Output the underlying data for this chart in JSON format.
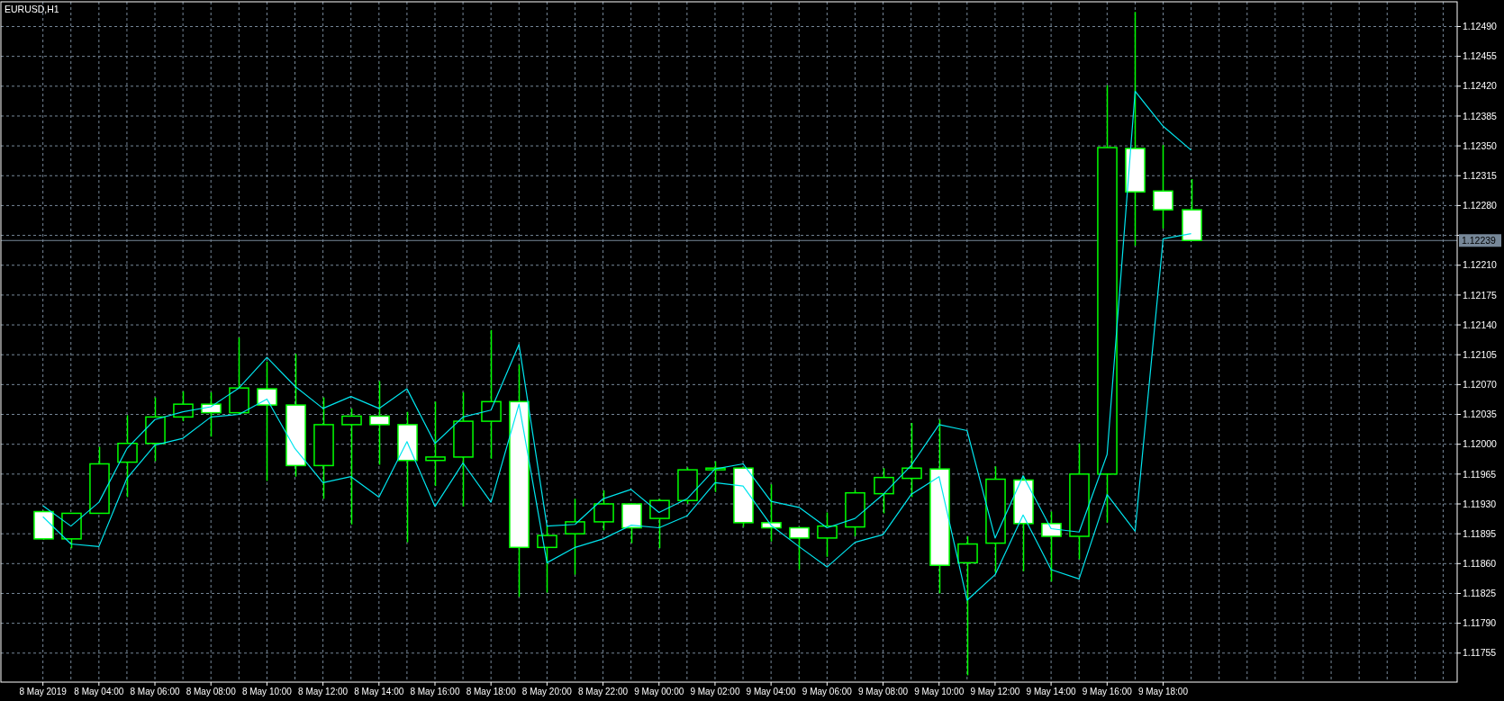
{
  "chart_data": {
    "type": "candlestick",
    "title": "EURUSD,H1",
    "x": [
      "2019-05-08T02:00",
      "2019-05-08T03:00",
      "2019-05-08T04:00",
      "2019-05-08T05:00",
      "2019-05-08T06:00",
      "2019-05-08T07:00",
      "2019-05-08T08:00",
      "2019-05-08T09:00",
      "2019-05-08T10:00",
      "2019-05-08T11:00",
      "2019-05-08T12:00",
      "2019-05-08T13:00",
      "2019-05-08T14:00",
      "2019-05-08T15:00",
      "2019-05-08T16:00",
      "2019-05-08T17:00",
      "2019-05-08T18:00",
      "2019-05-08T19:00",
      "2019-05-08T20:00",
      "2019-05-08T21:00",
      "2019-05-08T22:00",
      "2019-05-08T23:00",
      "2019-05-09T00:00",
      "2019-05-09T01:00",
      "2019-05-09T02:00",
      "2019-05-09T03:00",
      "2019-05-09T04:00",
      "2019-05-09T05:00",
      "2019-05-09T06:00",
      "2019-05-09T07:00",
      "2019-05-09T08:00",
      "2019-05-09T09:00",
      "2019-05-09T10:00",
      "2019-05-09T11:00",
      "2019-05-09T12:00",
      "2019-05-09T13:00",
      "2019-05-09T14:00",
      "2019-05-09T15:00",
      "2019-05-09T16:00",
      "2019-05-09T17:00",
      "2019-05-09T18:00",
      "2019-05-09T19:00"
    ],
    "series": [
      {
        "color": "#00ff00",
        "ohlc": [
          [
            1.11921,
            1.11922,
            1.11888,
            1.11889
          ],
          [
            1.11889,
            1.11919,
            1.11878,
            1.11919
          ],
          [
            1.11919,
            1.11997,
            1.11919,
            1.11977
          ],
          [
            1.11979,
            1.12034,
            1.11938,
            1.12001
          ],
          [
            1.12001,
            1.12055,
            1.1198,
            1.12032
          ],
          [
            1.12032,
            1.12062,
            1.12027,
            1.12047
          ],
          [
            1.12047,
            1.12061,
            1.12009,
            1.12037
          ],
          [
            1.12037,
            1.12125,
            1.12035,
            1.12066
          ],
          [
            1.12065,
            1.12097,
            1.11957,
            1.12046
          ],
          [
            1.12046,
            1.12106,
            1.11962,
            1.11975
          ],
          [
            1.11975,
            1.12055,
            1.11936,
            1.12023
          ],
          [
            1.12023,
            1.12042,
            1.11906,
            1.12033
          ],
          [
            1.12033,
            1.12074,
            1.11976,
            1.12023
          ],
          [
            1.12023,
            1.12038,
            1.11885,
            1.11981
          ],
          [
            1.11981,
            1.1205,
            1.11951,
            1.11985
          ],
          [
            1.11985,
            1.12061,
            1.11927,
            1.12027
          ],
          [
            1.12027,
            1.12134,
            1.11983,
            1.1205
          ],
          [
            1.1205,
            1.12093,
            1.11821,
            1.11879
          ],
          [
            1.11879,
            1.11904,
            1.11826,
            1.11893
          ],
          [
            1.11895,
            1.11936,
            1.11847,
            1.11909
          ],
          [
            1.11909,
            1.11946,
            1.11899,
            1.1193
          ],
          [
            1.1193,
            1.11931,
            1.11884,
            1.11902
          ],
          [
            1.11913,
            1.11936,
            1.11878,
            1.11934
          ],
          [
            1.11934,
            1.11973,
            1.1193,
            1.1197
          ],
          [
            1.1197,
            1.1198,
            1.11944,
            1.11972
          ],
          [
            1.11972,
            1.11973,
            1.11903,
            1.11908
          ],
          [
            1.11908,
            1.11953,
            1.11886,
            1.11902
          ],
          [
            1.11902,
            1.11903,
            1.11853,
            1.1189
          ],
          [
            1.1189,
            1.1192,
            1.11868,
            1.11904
          ],
          [
            1.11903,
            1.11946,
            1.11892,
            1.11943
          ],
          [
            1.11942,
            1.11972,
            1.11919,
            1.11961
          ],
          [
            1.1196,
            1.12025,
            1.11938,
            1.11972
          ],
          [
            1.11971,
            1.12029,
            1.11825,
            1.11858
          ],
          [
            1.11861,
            1.11892,
            1.11729,
            1.11883
          ],
          [
            1.11884,
            1.11974,
            1.11849,
            1.11959
          ],
          [
            1.11958,
            1.11963,
            1.11851,
            1.11907
          ],
          [
            1.11907,
            1.11921,
            1.11839,
            1.11892
          ],
          [
            1.11892,
            1.12001,
            1.11865,
            1.11965
          ],
          [
            1.11965,
            1.12421,
            1.11908,
            1.12348
          ],
          [
            1.12347,
            1.12507,
            1.12233,
            1.12296
          ],
          [
            1.12297,
            1.12351,
            1.12253,
            1.12275
          ],
          [
            1.12275,
            1.12311,
            1.12239,
            1.12239
          ]
        ]
      },
      {
        "type": "line",
        "color": "#00e5ee",
        "values": [
          1.11928,
          1.11904,
          1.11932,
          1.11995,
          1.12029,
          1.12038,
          1.12044,
          1.12066,
          1.12102,
          1.12068,
          1.12042,
          1.12056,
          1.12042,
          1.12065,
          1.12001,
          1.12032,
          1.1204,
          1.12117,
          1.11904,
          1.11906,
          1.11936,
          1.11947,
          1.1192,
          1.11936,
          1.11971,
          1.11977,
          1.11933,
          1.11926,
          1.11902,
          1.11913,
          1.11941,
          1.11975,
          1.12023,
          1.12016,
          1.1189,
          1.11963,
          1.11901,
          1.11897,
          1.11988,
          1.12414,
          1.12373,
          1.12345
        ]
      },
      {
        "type": "line",
        "color": "#00e5ee",
        "values": [
          1.11915,
          1.11883,
          1.1188,
          1.1196,
          1.11999,
          1.12007,
          1.12032,
          1.12035,
          1.12053,
          1.11995,
          1.11955,
          1.11962,
          1.11938,
          1.12003,
          1.11927,
          1.11978,
          1.11932,
          1.12047,
          1.11861,
          1.11879,
          1.11889,
          1.11905,
          1.11902,
          1.11916,
          1.11955,
          1.11951,
          1.11905,
          1.1188,
          1.11856,
          1.11885,
          1.11894,
          1.11941,
          1.11962,
          1.11817,
          1.11847,
          1.11917,
          1.11853,
          1.11842,
          1.11941,
          1.11898,
          1.12241,
          1.12247
        ]
      }
    ],
    "xlim": [
      "2019-05-08T00:30",
      "2019-05-10T04:30"
    ],
    "xticks": [
      {
        "value": "2019-05-08T02:00",
        "label": "8 May 2019"
      },
      {
        "value": "2019-05-08T03:00",
        "label": null
      },
      {
        "value": "2019-05-08T04:00",
        "label": "8 May 04:00"
      },
      {
        "value": "2019-05-08T05:00",
        "label": null
      },
      {
        "value": "2019-05-08T06:00",
        "label": "8 May 06:00"
      },
      {
        "value": "2019-05-08T07:00",
        "label": null
      },
      {
        "value": "2019-05-08T08:00",
        "label": "8 May 08:00"
      },
      {
        "value": "2019-05-08T09:00",
        "label": null
      },
      {
        "value": "2019-05-08T10:00",
        "label": "8 May 10:00"
      },
      {
        "value": "2019-05-08T11:00",
        "label": null
      },
      {
        "value": "2019-05-08T12:00",
        "label": "8 May 12:00"
      },
      {
        "value": "2019-05-08T13:00",
        "label": null
      },
      {
        "value": "2019-05-08T14:00",
        "label": "8 May 14:00"
      },
      {
        "value": "2019-05-08T15:00",
        "label": null
      },
      {
        "value": "2019-05-08T16:00",
        "label": "8 May 16:00"
      },
      {
        "value": "2019-05-08T17:00",
        "label": null
      },
      {
        "value": "2019-05-08T18:00",
        "label": "8 May 18:00"
      },
      {
        "value": "2019-05-08T19:00",
        "label": null
      },
      {
        "value": "2019-05-08T20:00",
        "label": "8 May 20:00"
      },
      {
        "value": "2019-05-08T21:00",
        "label": null
      },
      {
        "value": "2019-05-08T22:00",
        "label": "8 May 22:00"
      },
      {
        "value": "2019-05-08T23:00",
        "label": null
      },
      {
        "value": "2019-05-09T00:00",
        "label": "9 May 00:00"
      },
      {
        "value": "2019-05-09T01:00",
        "label": null
      },
      {
        "value": "2019-05-09T02:00",
        "label": "9 May 02:00"
      },
      {
        "value": "2019-05-09T03:00",
        "label": null
      },
      {
        "value": "2019-05-09T04:00",
        "label": "9 May 04:00"
      },
      {
        "value": "2019-05-09T05:00",
        "label": null
      },
      {
        "value": "2019-05-09T06:00",
        "label": "9 May 06:00"
      },
      {
        "value": "2019-05-09T07:00",
        "label": null
      },
      {
        "value": "2019-05-09T08:00",
        "label": "9 May 08:00"
      },
      {
        "value": "2019-05-09T09:00",
        "label": null
      },
      {
        "value": "2019-05-09T10:00",
        "label": "9 May 10:00"
      },
      {
        "value": "2019-05-09T11:00",
        "label": null
      },
      {
        "value": "2019-05-09T12:00",
        "label": "9 May 12:00"
      },
      {
        "value": "2019-05-09T13:00",
        "label": null
      },
      {
        "value": "2019-05-09T14:00",
        "label": "9 May 14:00"
      },
      {
        "value": "2019-05-09T15:00",
        "label": null
      },
      {
        "value": "2019-05-09T16:00",
        "label": "9 May 16:00"
      },
      {
        "value": "2019-05-09T17:00",
        "label": null
      },
      {
        "value": "2019-05-09T18:00",
        "label": "9 May 18:00"
      },
      {
        "value": "2019-05-09T19:00",
        "label": null
      },
      {
        "value": "2019-05-09T20:00",
        "label": null
      },
      {
        "value": "2019-05-09T21:00",
        "label": null
      },
      {
        "value": "2019-05-09T22:00",
        "label": null
      },
      {
        "value": "2019-05-09T23:00",
        "label": null
      },
      {
        "value": "2019-05-10T00:00",
        "label": null
      },
      {
        "value": "2019-05-10T01:00",
        "label": null
      },
      {
        "value": "2019-05-10T02:00",
        "label": null
      },
      {
        "value": "2019-05-10T03:00",
        "label": null
      },
      {
        "value": "2019-05-10T04:00",
        "label": null
      }
    ],
    "ylim": [
      1.11721,
      1.12519
    ],
    "yticks": [
      {
        "value": 1.11755,
        "label": "1.11755"
      },
      {
        "value": 1.1179,
        "label": "1.11790"
      },
      {
        "value": 1.11825,
        "label": "1.11825"
      },
      {
        "value": 1.1186,
        "label": "1.11860"
      },
      {
        "value": 1.11895,
        "label": "1.11895"
      },
      {
        "value": 1.1193,
        "label": "1.11930"
      },
      {
        "value": 1.11965,
        "label": "1.11965"
      },
      {
        "value": 1.12,
        "label": "1.12000"
      },
      {
        "value": 1.12035,
        "label": "1.12035"
      },
      {
        "value": 1.1207,
        "label": "1.12070"
      },
      {
        "value": 1.12105,
        "label": "1.12105"
      },
      {
        "value": 1.1214,
        "label": "1.12140"
      },
      {
        "value": 1.12175,
        "label": "1.12175"
      },
      {
        "value": 1.1221,
        "label": "1.12210"
      },
      {
        "value": 1.12245,
        "label": null
      },
      {
        "value": 1.1228,
        "label": "1.12280"
      },
      {
        "value": 1.12315,
        "label": "1.12315"
      },
      {
        "value": 1.1235,
        "label": "1.12350"
      },
      {
        "value": 1.12385,
        "label": "1.12385"
      },
      {
        "value": 1.1242,
        "label": "1.12420"
      },
      {
        "value": 1.12455,
        "label": "1.12455"
      },
      {
        "value": 1.1249,
        "label": "1.12490"
      }
    ],
    "ref_lines": [
      {
        "axis": "y",
        "value": 1.12239,
        "label": "1.12239",
        "color": "#778899"
      }
    ],
    "grid": true
  }
}
